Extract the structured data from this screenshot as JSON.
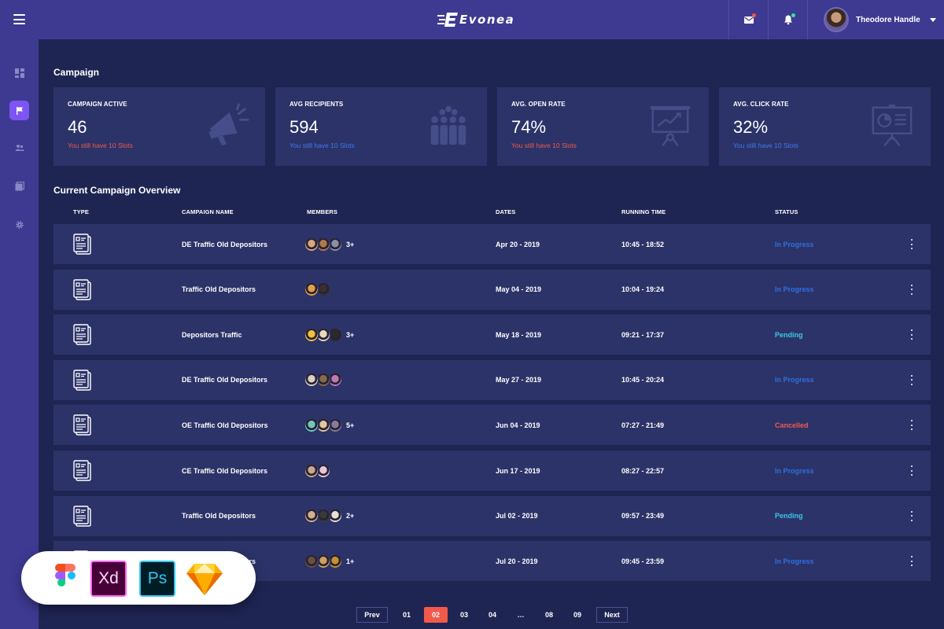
{
  "header": {
    "logo_text": "Evonea",
    "user_name": "Theodore Handle",
    "colors": {
      "bar": "#3e3991",
      "mail_dot": "#f2594b",
      "bell_dot": "#2ee6a0"
    }
  },
  "sidebar": {
    "items": [
      {
        "icon": "dashboard-icon",
        "active": false
      },
      {
        "icon": "flag-icon",
        "active": true
      },
      {
        "icon": "users-icon",
        "active": false
      },
      {
        "icon": "gallery-icon",
        "active": false
      },
      {
        "icon": "gear-icon",
        "active": false
      }
    ]
  },
  "campaign": {
    "title": "Campaign",
    "cards": [
      {
        "label": "CAMPAIGN ACTIVE",
        "value": "46",
        "note": "You still have 10 Slots",
        "note_color": "#f2594b",
        "icon": "megaphone-icon"
      },
      {
        "label": "AVG RECIPIENTS",
        "value": "594",
        "note": "You still have 10 Slots",
        "note_color": "#3d7bf0",
        "icon": "audience-icon"
      },
      {
        "label": "AVG. OPEN RATE",
        "value": "74%",
        "note": "You still have 10 Slots",
        "note_color": "#f2594b",
        "icon": "presentation-chart-icon"
      },
      {
        "label": "AVG. CLICK RATE",
        "value": "32%",
        "note": "You still have 10 Slots",
        "note_color": "#3d7bf0",
        "icon": "presentation-pie-icon"
      }
    ]
  },
  "overview": {
    "title": "Current Campaign Overview",
    "columns": {
      "type": "TYPE",
      "name": "CAMPAIGN NAME",
      "members": "MEMBERS",
      "dates": "DATES",
      "running": "RUNNING TIME",
      "status": "STATUS"
    },
    "rows": [
      {
        "name": "DE Traffic Old Depositors",
        "avatars": [
          "#d9a77e",
          "#b07a4a",
          "#8a8fa8"
        ],
        "more": "3+",
        "date": "Apr 20 - 2019",
        "time": "10:45 - 18:52",
        "status": "In Progress",
        "status_color": "#2f6fe0"
      },
      {
        "name": "Traffic Old Depositors",
        "avatars": [
          "#e0a04a",
          "#3a3030"
        ],
        "more": "",
        "date": "May 04 - 2019",
        "time": "10:04 - 19:24",
        "status": "In Progress",
        "status_color": "#2f6fe0"
      },
      {
        "name": "Depositors Traffic",
        "avatars": [
          "#f0c040",
          "#e8d8c0",
          "#2a2a2a"
        ],
        "more": "3+",
        "date": "May 18 - 2019",
        "time": "09:21 - 17:37",
        "status": "Pending",
        "status_color": "#3cc8e8"
      },
      {
        "name": "DE Traffic Old Depositors",
        "avatars": [
          "#d9d0c8",
          "#8a6a4a",
          "#c07ab0"
        ],
        "more": "",
        "date": "May 27 - 2019",
        "time": "10:45 - 20:24",
        "status": "In Progress",
        "status_color": "#2f6fe0"
      },
      {
        "name": "OE Traffic Old Depositors",
        "avatars": [
          "#6ec8c0",
          "#e0c8a0",
          "#8a7a9a"
        ],
        "more": "5+",
        "date": "Jun 04 - 2019",
        "time": "07:27 - 21:49",
        "status": "Cancelled",
        "status_color": "#f2594b"
      },
      {
        "name": "CE Traffic Old Depositors",
        "avatars": [
          "#c8a890",
          "#e8c8d8"
        ],
        "more": "",
        "date": "Jun 17 - 2019",
        "time": "08:27 - 22:57",
        "status": "In Progress",
        "status_color": "#2f6fe0"
      },
      {
        "name": "Traffic Old Depositors",
        "avatars": [
          "#d0b090",
          "#3a3a3a",
          "#e8e0d8"
        ],
        "more": "2+",
        "date": "Jul 02 - 2019",
        "time": "09:57 - 23:49",
        "status": "Pending",
        "status_color": "#3cc8e8"
      },
      {
        "name": "Traffic Old Depositors",
        "avatars": [
          "#6a5040",
          "#d0a060",
          "#c89030"
        ],
        "more": "1+",
        "date": "Jul 20 - 2019",
        "time": "09:45 - 23:59",
        "status": "In Progress",
        "status_color": "#2f6fe0"
      }
    ]
  },
  "pagination": {
    "prev": "Prev",
    "pages": [
      "01",
      "02",
      "03",
      "04",
      "…",
      "08",
      "09"
    ],
    "current": "02",
    "next": "Next"
  },
  "tools_badge": {
    "items": [
      {
        "icon": "figma-icon"
      },
      {
        "icon": "xd-icon",
        "label": "Xd"
      },
      {
        "icon": "photoshop-icon",
        "label": "Ps"
      },
      {
        "icon": "sketch-icon"
      }
    ]
  }
}
